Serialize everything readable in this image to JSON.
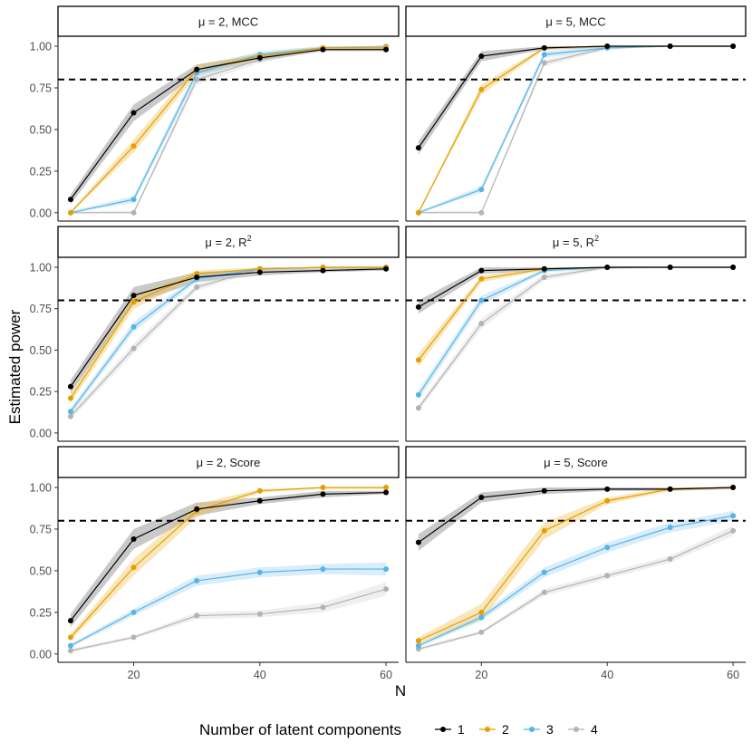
{
  "chart_data": {
    "type": "line",
    "ylabel": "Estimated power",
    "xlabel": "N",
    "xlim": [
      8,
      62
    ],
    "ylim": [
      -0.05,
      1.06
    ],
    "xticks": [
      20,
      40,
      60
    ],
    "yticks": [
      "0.00",
      "0.25",
      "0.50",
      "0.75",
      "1.00"
    ],
    "ytick_values": [
      0,
      0.25,
      0.5,
      0.75,
      1
    ],
    "reference_line": 0.8,
    "x": [
      10,
      20,
      30,
      40,
      50,
      60
    ],
    "grid": false,
    "legend": {
      "title": "Number of latent components",
      "position": "bottom",
      "entries": [
        {
          "label": "1",
          "color": "#000000"
        },
        {
          "label": "2",
          "color": "#E69F00"
        },
        {
          "label": "3",
          "color": "#56B4E9"
        },
        {
          "label": "4",
          "color": "#B3B3B3"
        }
      ]
    },
    "panels": [
      {
        "strip": {
          "mu": "μ = 2, ",
          "metric": "MCC",
          "sup": ""
        },
        "series": [
          {
            "name": "1",
            "values": [
              0.08,
              0.6,
              0.86,
              0.93,
              0.98,
              0.98
            ],
            "lower": [
              0.05,
              0.55,
              0.83,
              0.91,
              0.97,
              0.97
            ],
            "upper": [
              0.11,
              0.65,
              0.89,
              0.95,
              0.99,
              0.99
            ]
          },
          {
            "name": "2",
            "values": [
              0.0,
              0.4,
              0.86,
              0.94,
              0.99,
              0.99
            ],
            "lower": [
              0.0,
              0.36,
              0.83,
              0.92,
              0.98,
              0.98
            ],
            "upper": [
              0.01,
              0.44,
              0.89,
              0.96,
              1.0,
              1.0
            ]
          },
          {
            "name": "3",
            "values": [
              0.0,
              0.08,
              0.84,
              0.95,
              0.99,
              0.99
            ],
            "lower": [
              0.0,
              0.06,
              0.81,
              0.93,
              0.98,
              0.98
            ],
            "upper": [
              0.01,
              0.1,
              0.87,
              0.97,
              1.0,
              1.0
            ]
          },
          {
            "name": "4",
            "values": [
              0.0,
              0.0,
              0.8,
              0.92,
              0.99,
              1.0
            ],
            "lower": [
              0.0,
              0.0,
              0.77,
              0.9,
              0.98,
              0.99
            ],
            "upper": [
              0.01,
              0.01,
              0.83,
              0.94,
              1.0,
              1.0
            ]
          }
        ]
      },
      {
        "strip": {
          "mu": "μ = 5, ",
          "metric": "MCC",
          "sup": ""
        },
        "series": [
          {
            "name": "1",
            "values": [
              0.39,
              0.94,
              0.99,
              1.0,
              1.0,
              1.0
            ],
            "lower": [
              0.35,
              0.91,
              0.98,
              0.99,
              1.0,
              1.0
            ],
            "upper": [
              0.43,
              0.97,
              1.0,
              1.0,
              1.0,
              1.0
            ]
          },
          {
            "name": "2",
            "values": [
              0.0,
              0.74,
              0.99,
              1.0,
              1.0,
              1.0
            ],
            "lower": [
              0.0,
              0.71,
              0.98,
              0.99,
              1.0,
              1.0
            ],
            "upper": [
              0.01,
              0.77,
              1.0,
              1.0,
              1.0,
              1.0
            ]
          },
          {
            "name": "3",
            "values": [
              0.0,
              0.14,
              0.95,
              0.99,
              1.0,
              1.0
            ],
            "lower": [
              0.0,
              0.12,
              0.93,
              0.98,
              1.0,
              1.0
            ],
            "upper": [
              0.01,
              0.16,
              0.97,
              1.0,
              1.0,
              1.0
            ]
          },
          {
            "name": "4",
            "values": [
              0.0,
              0.0,
              0.9,
              0.99,
              1.0,
              1.0
            ],
            "lower": [
              0.0,
              0.0,
              0.88,
              0.98,
              1.0,
              1.0
            ],
            "upper": [
              0.01,
              0.01,
              0.92,
              1.0,
              1.0,
              1.0
            ]
          }
        ]
      },
      {
        "strip": {
          "mu": "μ = 2, ",
          "metric": "R",
          "sup": "2"
        },
        "series": [
          {
            "name": "1",
            "values": [
              0.28,
              0.83,
              0.94,
              0.97,
              0.98,
              0.99
            ],
            "lower": [
              0.24,
              0.78,
              0.91,
              0.95,
              0.97,
              0.98
            ],
            "upper": [
              0.32,
              0.88,
              0.97,
              0.99,
              0.99,
              1.0
            ]
          },
          {
            "name": "2",
            "values": [
              0.21,
              0.79,
              0.96,
              0.99,
              1.0,
              1.0
            ],
            "lower": [
              0.18,
              0.75,
              0.94,
              0.98,
              0.99,
              0.99
            ],
            "upper": [
              0.24,
              0.83,
              0.98,
              1.0,
              1.0,
              1.0
            ]
          },
          {
            "name": "3",
            "values": [
              0.13,
              0.64,
              0.93,
              0.99,
              1.0,
              1.0
            ],
            "lower": [
              0.11,
              0.61,
              0.91,
              0.98,
              0.99,
              0.99
            ],
            "upper": [
              0.15,
              0.67,
              0.95,
              1.0,
              1.0,
              1.0
            ]
          },
          {
            "name": "4",
            "values": [
              0.1,
              0.51,
              0.88,
              0.99,
              1.0,
              1.0
            ],
            "lower": [
              0.08,
              0.48,
              0.86,
              0.98,
              0.99,
              0.99
            ],
            "upper": [
              0.12,
              0.54,
              0.9,
              1.0,
              1.0,
              1.0
            ]
          }
        ]
      },
      {
        "strip": {
          "mu": "μ = 5, ",
          "metric": "R",
          "sup": "2"
        },
        "series": [
          {
            "name": "1",
            "values": [
              0.76,
              0.98,
              0.99,
              1.0,
              1.0,
              1.0
            ],
            "lower": [
              0.72,
              0.96,
              0.98,
              0.99,
              1.0,
              1.0
            ],
            "upper": [
              0.8,
              1.0,
              1.0,
              1.0,
              1.0,
              1.0
            ]
          },
          {
            "name": "2",
            "values": [
              0.44,
              0.93,
              0.99,
              1.0,
              1.0,
              1.0
            ],
            "lower": [
              0.4,
              0.91,
              0.98,
              0.99,
              1.0,
              1.0
            ],
            "upper": [
              0.48,
              0.95,
              1.0,
              1.0,
              1.0,
              1.0
            ]
          },
          {
            "name": "3",
            "values": [
              0.23,
              0.8,
              0.98,
              1.0,
              1.0,
              1.0
            ],
            "lower": [
              0.2,
              0.77,
              0.97,
              0.99,
              1.0,
              1.0
            ],
            "upper": [
              0.26,
              0.83,
              0.99,
              1.0,
              1.0,
              1.0
            ]
          },
          {
            "name": "4",
            "values": [
              0.15,
              0.66,
              0.94,
              1.0,
              1.0,
              1.0
            ],
            "lower": [
              0.13,
              0.63,
              0.92,
              0.99,
              1.0,
              1.0
            ],
            "upper": [
              0.17,
              0.69,
              0.96,
              1.0,
              1.0,
              1.0
            ]
          }
        ]
      },
      {
        "strip": {
          "mu": "μ = 2, ",
          "metric": "Score",
          "sup": ""
        },
        "series": [
          {
            "name": "1",
            "values": [
              0.2,
              0.69,
              0.87,
              0.92,
              0.96,
              0.97
            ],
            "lower": [
              0.16,
              0.63,
              0.83,
              0.9,
              0.94,
              0.96
            ],
            "upper": [
              0.24,
              0.75,
              0.91,
              0.94,
              0.98,
              0.98
            ]
          },
          {
            "name": "2",
            "values": [
              0.1,
              0.52,
              0.86,
              0.98,
              1.0,
              1.0
            ],
            "lower": [
              0.08,
              0.47,
              0.82,
              0.97,
              0.99,
              0.99
            ],
            "upper": [
              0.12,
              0.57,
              0.9,
              0.99,
              1.0,
              1.0
            ]
          },
          {
            "name": "3",
            "values": [
              0.05,
              0.25,
              0.44,
              0.49,
              0.51,
              0.51
            ],
            "lower": [
              0.04,
              0.23,
              0.41,
              0.46,
              0.48,
              0.47
            ],
            "upper": [
              0.06,
              0.27,
              0.47,
              0.52,
              0.54,
              0.55
            ]
          },
          {
            "name": "4",
            "values": [
              0.02,
              0.1,
              0.23,
              0.24,
              0.28,
              0.39
            ],
            "lower": [
              0.01,
              0.09,
              0.21,
              0.22,
              0.25,
              0.35
            ],
            "upper": [
              0.03,
              0.11,
              0.25,
              0.26,
              0.31,
              0.43
            ]
          }
        ]
      },
      {
        "strip": {
          "mu": "μ = 5, ",
          "metric": "Score",
          "sup": ""
        },
        "series": [
          {
            "name": "1",
            "values": [
              0.67,
              0.94,
              0.98,
              0.99,
              0.99,
              1.0
            ],
            "lower": [
              0.62,
              0.91,
              0.96,
              0.98,
              0.98,
              0.99
            ],
            "upper": [
              0.72,
              0.97,
              1.0,
              1.0,
              1.0,
              1.0
            ]
          },
          {
            "name": "2",
            "values": [
              0.08,
              0.25,
              0.74,
              0.92,
              0.99,
              1.0
            ],
            "lower": [
              0.06,
              0.2,
              0.69,
              0.9,
              0.98,
              0.99
            ],
            "upper": [
              0.1,
              0.3,
              0.79,
              0.94,
              1.0,
              1.0
            ]
          },
          {
            "name": "3",
            "values": [
              0.05,
              0.22,
              0.49,
              0.64,
              0.76,
              0.83
            ],
            "lower": [
              0.04,
              0.2,
              0.46,
              0.61,
              0.73,
              0.8
            ],
            "upper": [
              0.06,
              0.24,
              0.52,
              0.67,
              0.79,
              0.86
            ]
          },
          {
            "name": "4",
            "values": [
              0.03,
              0.13,
              0.37,
              0.47,
              0.57,
              0.74
            ],
            "lower": [
              0.02,
              0.12,
              0.35,
              0.45,
              0.55,
              0.71
            ],
            "upper": [
              0.04,
              0.14,
              0.39,
              0.49,
              0.59,
              0.77
            ]
          }
        ]
      }
    ]
  }
}
